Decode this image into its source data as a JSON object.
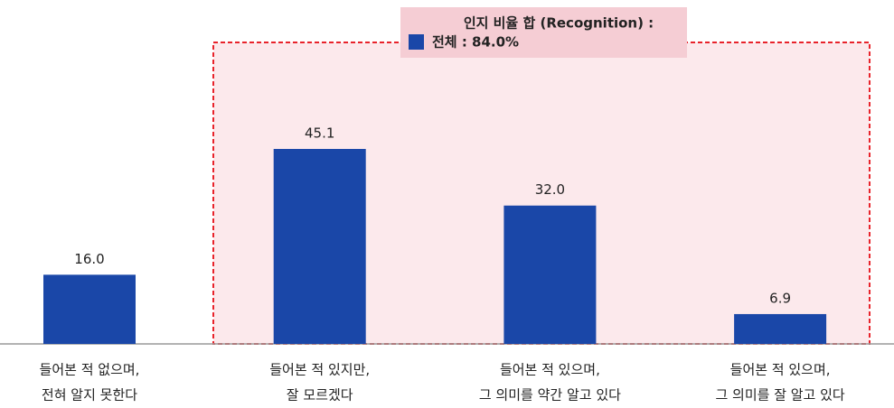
{
  "chart_data": {
    "type": "bar",
    "categories": [
      [
        "들어본 적 없으며,",
        "전혀 알지 못한다"
      ],
      [
        "들어본 적 있지만,",
        "잘 모르겠다"
      ],
      [
        "들어본 적 있으며,",
        "그 의미를 약간 알고 있다"
      ],
      [
        "들어본 적 있으며,",
        "그 의미를 잘 알고 있다"
      ]
    ],
    "values": [
      16.0,
      45.1,
      32.0,
      6.9
    ],
    "value_labels": [
      "16.0",
      "45.1",
      "32.0",
      "6.9"
    ],
    "color": "#1a47a8",
    "annotation": {
      "title": "인지 비율 합 (Recognition) :",
      "label": "전체 : 84.0%"
    }
  }
}
